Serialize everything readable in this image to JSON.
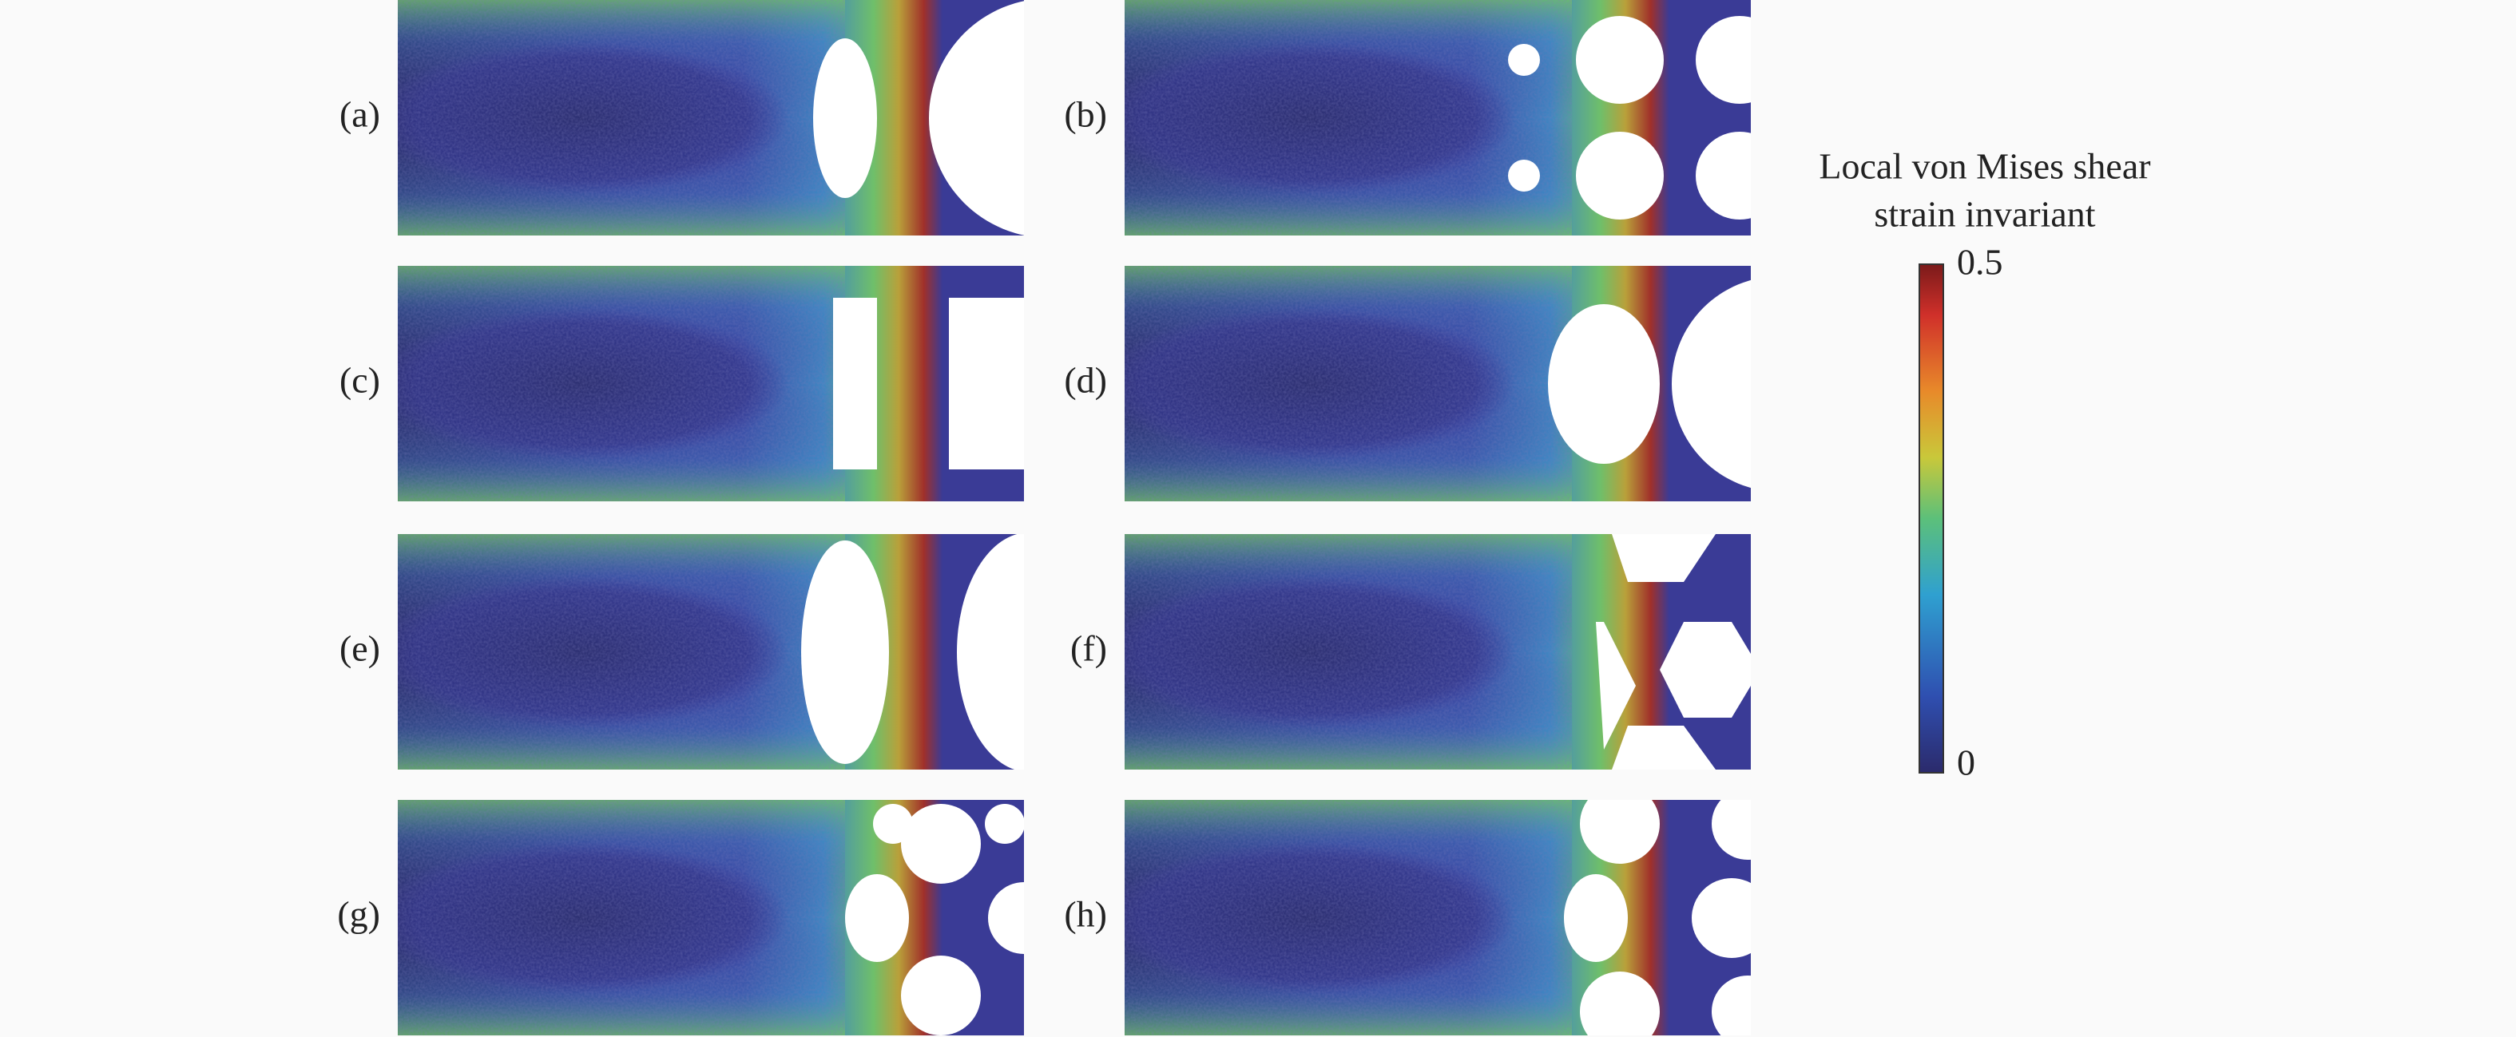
{
  "panels": [
    {
      "label": "(a)"
    },
    {
      "label": "(b)"
    },
    {
      "label": "(c)"
    },
    {
      "label": "(d)"
    },
    {
      "label": "(e)"
    },
    {
      "label": "(f)"
    },
    {
      "label": "(g)"
    },
    {
      "label": "(h)"
    }
  ],
  "colorbar": {
    "title_lines": [
      "Local von Mises shear",
      "strain invariant"
    ],
    "max_label": "0.5",
    "min_label": "0"
  }
}
